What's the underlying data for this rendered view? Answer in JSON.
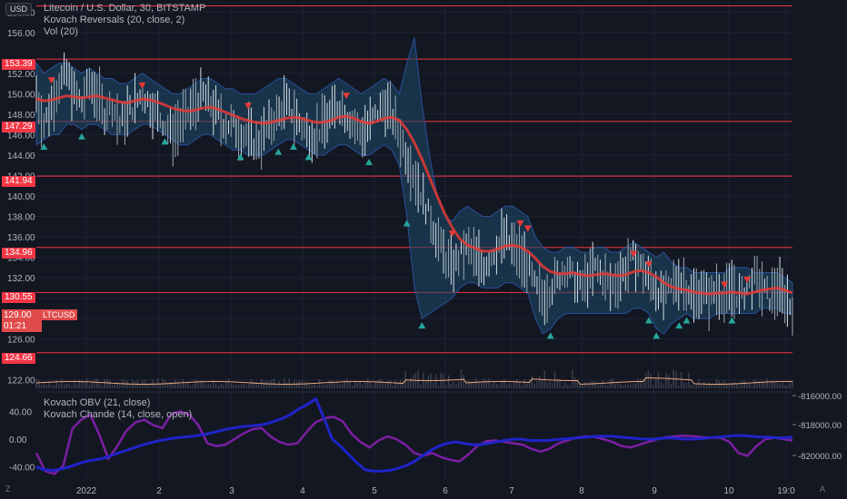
{
  "header": {
    "currency": "USD",
    "title": "Litecoin / U.S. Dollar, 30, BITSTAMP",
    "study1": "Kovach Reversals (20, close, 2)",
    "study2": "Vol (20)"
  },
  "lower_pane": {
    "study1": "Kovach OBV (21, close)",
    "study2": "Kovach Chande (14, close, open)"
  },
  "left_axis_ticks": [
    "158.00",
    "156.00",
    "152.00",
    "150.00",
    "148.00",
    "146.00",
    "144.00",
    "142.00",
    "140.00",
    "138.00",
    "136.00",
    "134.00",
    "132.00",
    "130.00",
    "128.00",
    "126.00",
    "124.00",
    "122.00"
  ],
  "hlines": [
    "153.39",
    "147.29",
    "141.94",
    "134.96",
    "130.55",
    "124.66"
  ],
  "current": {
    "price": "129.00",
    "countdown": "01:21",
    "symbol": "LTCUSD"
  },
  "osc_ticks": [
    "40.00",
    "0.00",
    "-40.00"
  ],
  "obv_ticks": [
    "-816000.00",
    "-818000.00",
    "-820000.00"
  ],
  "x_ticks": [
    "2022",
    "2",
    "3",
    "4",
    "5",
    "6",
    "7",
    "8",
    "9",
    "10",
    "19:0"
  ],
  "corner_left": "Z",
  "corner_right": "A",
  "colors": {
    "bg": "#131722",
    "hline": "#f23645",
    "band": "#1e4a6a",
    "ma": "#e53935",
    "down_arrow": "#e53935",
    "up_arrow": "#26a69a",
    "obv": "#1f24c8",
    "chande": "#7b1fa2",
    "vol_ma": "#e8a77e"
  },
  "chart_data": [
    {
      "type": "line",
      "name": "price",
      "x_axis_labels": [
        "2022",
        "2",
        "3",
        "4",
        "5",
        "6",
        "7",
        "8",
        "9",
        "10",
        "19:0"
      ],
      "y_range": [
        121,
        159
      ],
      "price_line": [
        150,
        147,
        149,
        151,
        152,
        150,
        149,
        151,
        150,
        148,
        149,
        147,
        148,
        149,
        150,
        149,
        148,
        147,
        146,
        147,
        148,
        149,
        150,
        149,
        148,
        147,
        147,
        146,
        146,
        145,
        146,
        147,
        148,
        149,
        148,
        147,
        146,
        146,
        147,
        148,
        149,
        148,
        147,
        146,
        147,
        148,
        149,
        148,
        146,
        144,
        142,
        140,
        138,
        136,
        134,
        133,
        134,
        135,
        134,
        133,
        134,
        135,
        136,
        135,
        134,
        133,
        131,
        130,
        131,
        132,
        133,
        132,
        131,
        132,
        133,
        132,
        131,
        132,
        133,
        134,
        133,
        132,
        131,
        130,
        131,
        132,
        131,
        130,
        131,
        130,
        131,
        130,
        131,
        130,
        131,
        132,
        131,
        130,
        131,
        130,
        129
      ],
      "ma_line": [
        149.5,
        149.3,
        149.4,
        149.6,
        149.8,
        149.7,
        149.6,
        149.7,
        149.8,
        149.6,
        149.4,
        149.2,
        149.1,
        149.3,
        149.5,
        149.4,
        149.2,
        148.9,
        148.6,
        148.4,
        148.3,
        148.4,
        148.6,
        148.7,
        148.5,
        148.2,
        147.9,
        147.6,
        147.4,
        147.2,
        147.1,
        147.2,
        147.4,
        147.6,
        147.7,
        147.6,
        147.4,
        147.2,
        147.2,
        147.4,
        147.7,
        147.8,
        147.6,
        147.3,
        147.1,
        147.3,
        147.6,
        147.7,
        147.4,
        146.5,
        145.2,
        143.6,
        141.8,
        140.0,
        138.3,
        136.9,
        135.8,
        135.2,
        134.9,
        134.6,
        134.6,
        134.8,
        135.1,
        135.2,
        135.0,
        134.6,
        133.9,
        133.1,
        132.6,
        132.4,
        132.4,
        132.5,
        132.3,
        132.2,
        132.3,
        132.4,
        132.3,
        132.2,
        132.3,
        132.6,
        132.7,
        132.5,
        132.1,
        131.5,
        131.1,
        130.9,
        130.8,
        130.6,
        130.5,
        130.4,
        130.5,
        130.5,
        130.6,
        130.5,
        130.4,
        130.6,
        130.8,
        130.9,
        131.0,
        130.8,
        130.5
      ],
      "band_upper": [
        153,
        152,
        152.5,
        153,
        153,
        152.5,
        152,
        152.5,
        152,
        151.5,
        151.5,
        151,
        151,
        151.5,
        152,
        151.5,
        151,
        150.5,
        150,
        150,
        150.5,
        151,
        151.5,
        151.5,
        151,
        150.5,
        150.5,
        150,
        150,
        150,
        150.5,
        151,
        151.5,
        151.5,
        151,
        150.5,
        150,
        150,
        150.5,
        151,
        151.5,
        151,
        150.5,
        150,
        150.5,
        151,
        151.5,
        151,
        150,
        153,
        155.5,
        149,
        144,
        140,
        138,
        137.5,
        138.5,
        139,
        138.5,
        138,
        138,
        138.5,
        139,
        139,
        138.5,
        138,
        136,
        135,
        134.5,
        134.5,
        135,
        135,
        134.5,
        134.5,
        135,
        135,
        134.5,
        134.5,
        135,
        135.5,
        135,
        134.5,
        134,
        134.5,
        133.5,
        133,
        133,
        132.5,
        132.5,
        132.5,
        132.5,
        132.5,
        133,
        133,
        133,
        132.5,
        132.5,
        132.5,
        132.5,
        132,
        131.5
      ],
      "band_lower": [
        145,
        145.5,
        146,
        146,
        147,
        147,
        146.5,
        147,
        147,
        146.5,
        146,
        146,
        146,
        146.5,
        147,
        147,
        146.5,
        146,
        145.5,
        145,
        145,
        145.5,
        146,
        146,
        145.5,
        145,
        144.5,
        144.5,
        144,
        144,
        144,
        144.5,
        145,
        145.5,
        145.5,
        145,
        144.5,
        144,
        144,
        144.5,
        145,
        145,
        144.5,
        144,
        144,
        144.5,
        145,
        144.5,
        143,
        138,
        131,
        128,
        128.5,
        129,
        129.5,
        130,
        131,
        131.5,
        131.5,
        131,
        131,
        131,
        131.5,
        131.5,
        131,
        130.5,
        128,
        126.5,
        127,
        128,
        128.5,
        128.5,
        128.5,
        128.5,
        128.5,
        128.5,
        128.5,
        128.5,
        128.5,
        129,
        129,
        128.5,
        127,
        126.5,
        127.5,
        128,
        128.5,
        128,
        128,
        128,
        128.5,
        128.5,
        128.5,
        128.5,
        128.5,
        128.5,
        129,
        129,
        129,
        128.5,
        128.5
      ],
      "down_arrows_x_fraction": [
        0.02,
        0.14,
        0.28,
        0.41,
        0.55,
        0.64,
        0.65,
        0.79,
        0.81,
        0.91,
        0.94
      ],
      "up_arrows_x_fraction": [
        0.01,
        0.06,
        0.17,
        0.27,
        0.32,
        0.34,
        0.36,
        0.44,
        0.49,
        0.51,
        0.68,
        0.81,
        0.82,
        0.85,
        0.86,
        0.92
      ]
    },
    {
      "type": "line",
      "name": "oscillators",
      "y_range_left": [
        -60,
        60
      ],
      "obv": [
        -40,
        -44,
        -45,
        -43,
        -40,
        -36,
        -32,
        -30,
        -28,
        -24,
        -20,
        -16,
        -12,
        -8,
        -5,
        -2,
        0,
        2,
        3,
        4,
        6,
        8,
        11,
        14,
        16,
        18,
        19,
        20,
        22,
        26,
        30,
        36,
        44,
        50,
        58,
        30,
        0,
        -10,
        -22,
        -34,
        -44,
        -46,
        -46,
        -45,
        -42,
        -38,
        -32,
        -24,
        -16,
        -10,
        -6,
        -4,
        -6,
        -8,
        -8,
        -6,
        -4,
        -2,
        0,
        0,
        -2,
        -2,
        -2,
        -1,
        0,
        1,
        2,
        3,
        4,
        4,
        4,
        3,
        2,
        1,
        0,
        0,
        1,
        2,
        1,
        0,
        0,
        1,
        2,
        3,
        4,
        5,
        5,
        4,
        3,
        3,
        2,
        2,
        3
      ],
      "chande": [
        -20,
        -46,
        -50,
        -38,
        15,
        28,
        35,
        6,
        -28,
        -10,
        12,
        24,
        28,
        20,
        16,
        36,
        40,
        35,
        20,
        -6,
        -10,
        -8,
        0,
        8,
        14,
        16,
        4,
        -4,
        -8,
        -6,
        10,
        24,
        30,
        32,
        26,
        8,
        -4,
        -12,
        -2,
        4,
        0,
        -8,
        -20,
        -24,
        -20,
        -26,
        -30,
        -32,
        -22,
        -10,
        -3,
        -2,
        -4,
        -6,
        -8,
        -14,
        -18,
        -14,
        -6,
        -2,
        2,
        4,
        3,
        0,
        -4,
        -10,
        -12,
        -8,
        -4,
        0,
        3,
        4,
        5,
        4,
        3,
        2,
        2,
        -4,
        -20,
        -24,
        -10,
        0,
        2,
        0,
        -2
      ]
    }
  ]
}
